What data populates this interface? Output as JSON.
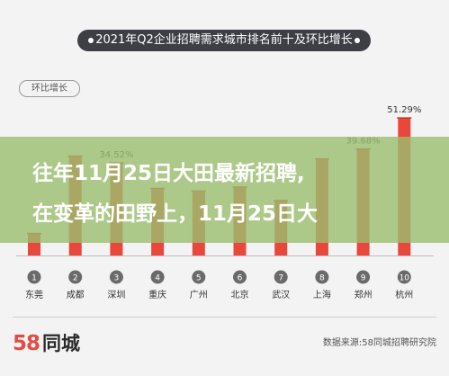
{
  "title": "2021年Q2企业招聘需求城市排名前十及环比增长",
  "subtitle": "环比增长",
  "chart_data": {
    "type": "bar",
    "title": "2021年Q2企业招聘需求城市排名前十及环比增长",
    "ylabel": "环比增长",
    "ylim": [
      0,
      55
    ],
    "categories": [
      "东莞",
      "成都",
      "深圳",
      "重庆",
      "广州",
      "北京",
      "武汉",
      "上海",
      "郑州",
      "杭州"
    ],
    "ranks": [
      "1",
      "2",
      "3",
      "4",
      "5",
      "6",
      "7",
      "8",
      "9",
      "10"
    ],
    "values": [
      8.2,
      37.0,
      34.52,
      25.0,
      24.0,
      25.5,
      20.5,
      36.0,
      39.68,
      51.29
    ],
    "data_labels": [
      "",
      "",
      "34.52%",
      "",
      "",
      "",
      "",
      "",
      "39.68%",
      "51.29%"
    ],
    "bar_color": "#e9463c",
    "grid": false
  },
  "overlay": {
    "line1": "往年11月25日大田最新招聘,",
    "line2": "在变革的田野上，11月25日大"
  },
  "logo": {
    "num": "58",
    "cn": "同城"
  },
  "source": "数据来源:58同城招聘研究院",
  "colors": {
    "title_bg": "#3e3f44",
    "overlay": "#9abe6e",
    "badge": "#6a6a6a"
  }
}
